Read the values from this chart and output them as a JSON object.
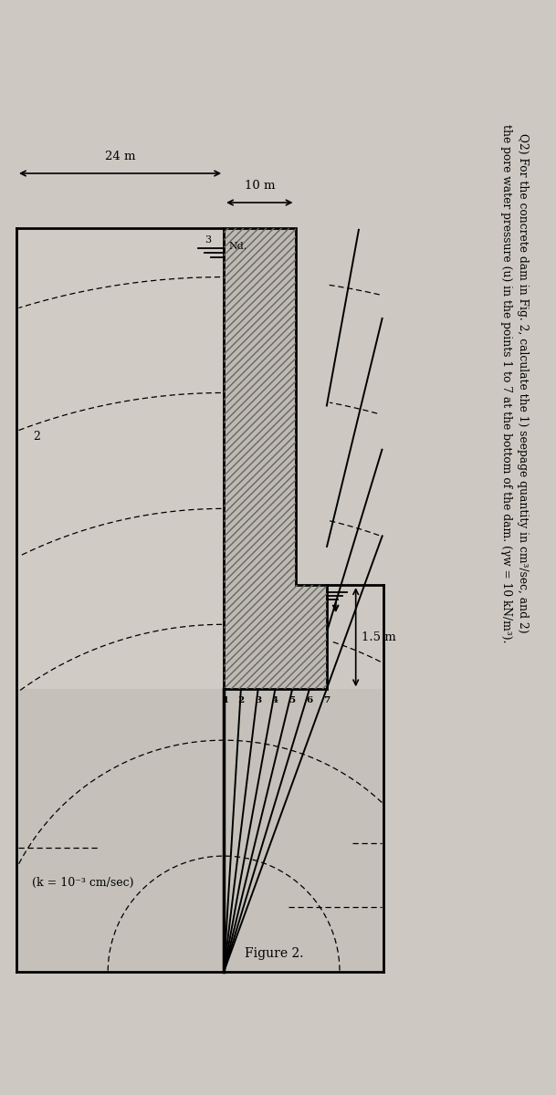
{
  "bg_color": "#cdc9c2",
  "fig_bg": "#d8d4cc",
  "dam_face_color": "#c0bcb5",
  "dam_edge_color": "#000000",
  "soil_color": "#c8c4bc",
  "text_color": "#000000",
  "title_line1": "Q2) For the concrete dam in Fig. 2, calculate the 1) seepage quantity in cm³/sec, and 2)",
  "title_line2": "the pore water pressure (u) in the points 1 to 7 at the bottom of the dam. (γw = 10 kN/m³).",
  "figure_label": "Figure 2.",
  "k_label": "(k = 10⁻³ cm/sec)",
  "dim_24m": "24 m",
  "dim_10m": "10 m",
  "dim_15m": "1.5 m",
  "label_Nd": "Nd.",
  "point_labels": [
    "1",
    "2",
    "3",
    "4",
    "5",
    "6",
    "7"
  ],
  "note2": "2",
  "note3": "3"
}
